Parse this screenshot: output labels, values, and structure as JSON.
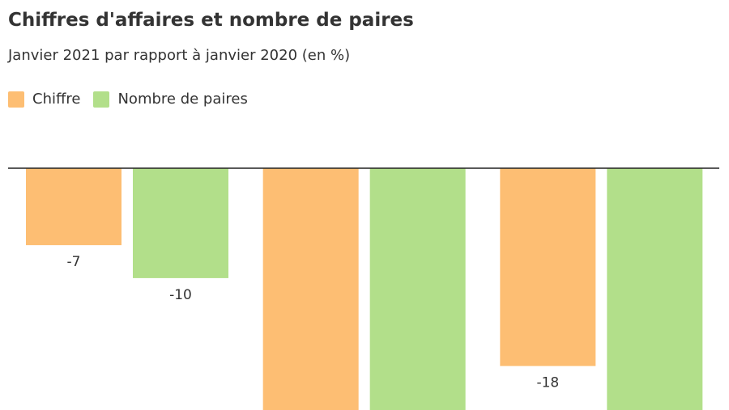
{
  "title": "Chiffres d'affaires et nombre de paires",
  "subtitle": "Janvier 2021 par rapport à janvier 2020 (en %)",
  "legend": [
    {
      "label": "Chiffre",
      "color": "#fdbe73"
    },
    {
      "label": "Nombre de paires",
      "color": "#b2df8a"
    }
  ],
  "chart_data": {
    "type": "bar",
    "categories": [
      "",
      "",
      ""
    ],
    "series": [
      {
        "name": "Chiffre",
        "color": "#fdbe73",
        "values": [
          -7,
          -22,
          -18
        ]
      },
      {
        "name": "Nombre de paires",
        "color": "#b2df8a",
        "values": [
          -10,
          -22,
          -22
        ]
      }
    ],
    "data_labels": [
      [
        "-7",
        "",
        "-18"
      ],
      [
        "-10",
        "",
        ""
      ]
    ],
    "ylim": [
      -22,
      0
    ],
    "grid": false,
    "legend_position": "top-left",
    "title": "Chiffres d'affaires et nombre de paires",
    "subtitle": "Janvier 2021 par rapport à janvier 2020 (en %)",
    "xlabel": "",
    "ylabel": ""
  }
}
